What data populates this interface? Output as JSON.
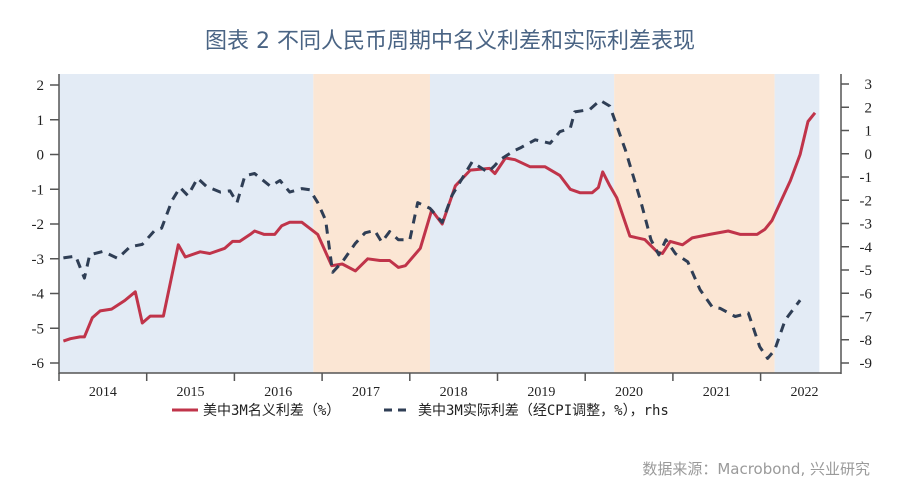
{
  "chart_data": {
    "type": "line",
    "title": "图表 2 不同人民币周期中名义利差和实际利差表现",
    "source": "数据来源：Macrobond, 兴业研究",
    "x_ticks": [
      "2014",
      "2015",
      "2016",
      "2017",
      "2018",
      "2019",
      "2020",
      "2021",
      "2022"
    ],
    "xlim": [
      2014.0,
      2022.7
    ],
    "ylim_left": [
      -6.3,
      2.3
    ],
    "ylim_right": [
      -9.4,
      3.4
    ],
    "yticks_left": [
      2,
      1,
      0,
      -1,
      -2,
      -3,
      -4,
      -5,
      -6
    ],
    "yticks_right": [
      3,
      2,
      1,
      0,
      -1,
      -2,
      -3,
      -4,
      -5,
      -6,
      -7,
      -8,
      -9
    ],
    "shading": [
      {
        "from": 2014.0,
        "to": 2016.9,
        "color": "#e3ebf5"
      },
      {
        "from": 2016.9,
        "to": 2018.23,
        "color": "#fbe6d4"
      },
      {
        "from": 2018.23,
        "to": 2020.33,
        "color": "#e3ebf5"
      },
      {
        "from": 2020.33,
        "to": 2022.16,
        "color": "#fbe6d4"
      },
      {
        "from": 2022.16,
        "to": 2022.67,
        "color": "#e3ebf5"
      }
    ],
    "series": [
      {
        "name": "美中3M名义利差（%）",
        "axis": "left",
        "color": "#c0344a",
        "style": "solid",
        "x": [
          2014.05,
          2014.13,
          2014.24,
          2014.29,
          2014.38,
          2014.47,
          2014.6,
          2014.75,
          2014.87,
          2014.95,
          2015.04,
          2015.19,
          2015.36,
          2015.44,
          2015.61,
          2015.72,
          2015.89,
          2015.98,
          2016.06,
          2016.18,
          2016.23,
          2016.34,
          2016.46,
          2016.54,
          2016.63,
          2016.77,
          2016.95,
          2017.11,
          2017.23,
          2017.38,
          2017.52,
          2017.66,
          2017.77,
          2017.87,
          2017.95,
          2018.12,
          2018.25,
          2018.37,
          2018.52,
          2018.69,
          2018.91,
          2018.97,
          2019.09,
          2019.2,
          2019.37,
          2019.54,
          2019.71,
          2019.83,
          2019.94,
          2020.08,
          2020.15,
          2020.2,
          2020.28,
          2020.36,
          2020.51,
          2020.68,
          2020.82,
          2020.88,
          2020.97,
          2021.11,
          2021.22,
          2021.42,
          2021.63,
          2021.77,
          2021.96,
          2022.05,
          2022.13,
          2022.34,
          2022.45,
          2022.54,
          2022.62
        ],
        "y": [
          -5.37,
          -5.3,
          -5.25,
          -5.25,
          -4.7,
          -4.5,
          -4.45,
          -4.2,
          -3.95,
          -4.85,
          -4.65,
          -4.65,
          -2.6,
          -2.95,
          -2.8,
          -2.85,
          -2.7,
          -2.5,
          -2.5,
          -2.3,
          -2.2,
          -2.3,
          -2.3,
          -2.05,
          -1.95,
          -1.95,
          -2.3,
          -3.2,
          -3.15,
          -3.35,
          -3.0,
          -3.05,
          -3.05,
          -3.25,
          -3.2,
          -2.7,
          -1.6,
          -2.0,
          -0.9,
          -0.45,
          -0.4,
          -0.55,
          -0.1,
          -0.15,
          -0.35,
          -0.35,
          -0.6,
          -1.0,
          -1.1,
          -1.1,
          -0.95,
          -0.5,
          -0.9,
          -1.25,
          -2.35,
          -2.45,
          -2.8,
          -2.85,
          -2.5,
          -2.6,
          -2.4,
          -2.3,
          -2.2,
          -2.3,
          -2.3,
          -2.15,
          -1.9,
          -0.75,
          0.0,
          0.95,
          1.2
        ]
      },
      {
        "name": "美中3M实际利差（经CPI调整，%），rhs",
        "axis": "right",
        "color": "#2f3e55",
        "style": "dashed",
        "x": [
          2014.05,
          2014.19,
          2014.29,
          2014.35,
          2014.5,
          2014.67,
          2014.81,
          2014.95,
          2015.09,
          2015.17,
          2015.29,
          2015.38,
          2015.47,
          2015.58,
          2015.68,
          2015.84,
          2015.95,
          2016.03,
          2016.12,
          2016.23,
          2016.41,
          2016.52,
          2016.63,
          2016.77,
          2016.86,
          2016.95,
          2017.04,
          2017.12,
          2017.23,
          2017.38,
          2017.49,
          2017.6,
          2017.68,
          2017.77,
          2017.87,
          2018.0,
          2018.09,
          2018.23,
          2018.37,
          2018.48,
          2018.71,
          2018.89,
          2018.97,
          2019.03,
          2019.2,
          2019.26,
          2019.43,
          2019.6,
          2019.71,
          2019.83,
          2019.88,
          2020.05,
          2020.17,
          2020.28,
          2020.46,
          2020.63,
          2020.75,
          2020.84,
          2020.92,
          2021.03,
          2021.17,
          2021.31,
          2021.45,
          2021.54,
          2021.71,
          2021.86,
          2021.99,
          2022.08,
          2022.16,
          2022.28,
          2022.45
        ],
        "y": [
          -4.48,
          -4.4,
          -5.35,
          -4.35,
          -4.2,
          -4.5,
          -4.0,
          -3.9,
          -3.3,
          -3.2,
          -2.0,
          -1.45,
          -1.8,
          -1.05,
          -1.4,
          -1.65,
          -1.6,
          -2.1,
          -0.95,
          -0.85,
          -1.4,
          -1.15,
          -1.65,
          -1.5,
          -1.55,
          -2.1,
          -2.85,
          -5.1,
          -4.65,
          -3.85,
          -3.4,
          -3.3,
          -3.8,
          -3.35,
          -3.7,
          -3.7,
          -2.1,
          -2.35,
          -2.95,
          -1.8,
          -0.35,
          -0.8,
          -0.5,
          -0.25,
          0.15,
          0.25,
          0.6,
          0.45,
          0.95,
          1.1,
          1.8,
          1.9,
          2.3,
          2.05,
          0.15,
          -2.0,
          -3.7,
          -4.35,
          -3.7,
          -4.3,
          -4.65,
          -5.85,
          -6.6,
          -6.65,
          -7.0,
          -6.85,
          -8.3,
          -8.8,
          -8.45,
          -7.15,
          -6.3
        ]
      }
    ],
    "legend": {
      "placement": "bottom",
      "items": [
        "美中3M名义利差（%）",
        "美中3M实际利差（经CPI调整，%），rhs"
      ]
    }
  }
}
